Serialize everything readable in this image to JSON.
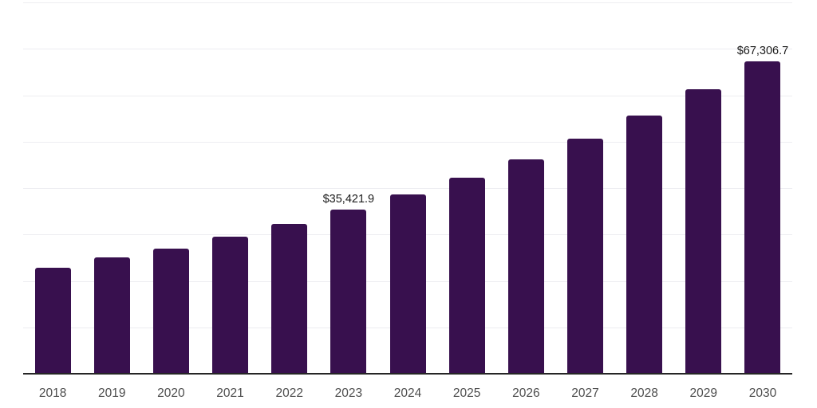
{
  "chart_data": {
    "type": "bar",
    "title": "",
    "xlabel": "",
    "ylabel": "",
    "categories": [
      "2018",
      "2019",
      "2020",
      "2021",
      "2022",
      "2023",
      "2024",
      "2025",
      "2026",
      "2027",
      "2028",
      "2029",
      "2030"
    ],
    "values": [
      22900,
      25000,
      27000,
      29600,
      32300,
      35421.9,
      38700,
      42300,
      46200,
      50700,
      55600,
      61300,
      67306.7
    ],
    "data_labels": {
      "2023": "$35,421.9",
      "2030": "$67,306.7"
    },
    "ylim": [
      0,
      80000
    ],
    "grid_step": 10000,
    "grid": "horizontal",
    "legend": false,
    "bar_color": "#38104E",
    "background_color": "#ffffff",
    "grid_color": "#ededf1",
    "axis_line_color": "#262626",
    "tick_label_color": "#4d4d4d",
    "data_label_color": "#1b1b1b"
  }
}
